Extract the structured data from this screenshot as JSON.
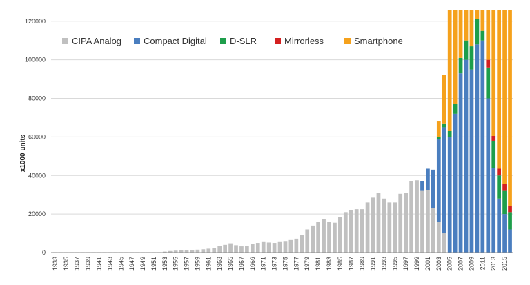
{
  "chart_data": {
    "type": "bar",
    "stacked": true,
    "title": "",
    "xlabel": "",
    "ylabel": "x1000 units",
    "ylim": [
      0,
      126000
    ],
    "yticks": [
      0,
      20000,
      40000,
      60000,
      80000,
      100000,
      120000
    ],
    "ytick_labels": [
      "0",
      "20000",
      "40000",
      "60000",
      "80000",
      "100000",
      "120000"
    ],
    "grid": "horizontal",
    "legend_position": "top-left",
    "categories": [
      "1933",
      "1934",
      "1935",
      "1936",
      "1937",
      "1938",
      "1939",
      "1940",
      "1941",
      "1942",
      "1943",
      "1944",
      "1945",
      "1946",
      "1947",
      "1948",
      "1949",
      "1950",
      "1951",
      "1952",
      "1953",
      "1954",
      "1955",
      "1956",
      "1957",
      "1958",
      "1959",
      "1960",
      "1961",
      "1962",
      "1963",
      "1964",
      "1965",
      "1966",
      "1967",
      "1968",
      "1969",
      "1970",
      "1971",
      "1972",
      "1973",
      "1974",
      "1975",
      "1976",
      "1977",
      "1978",
      "1979",
      "1980",
      "1981",
      "1982",
      "1983",
      "1984",
      "1985",
      "1986",
      "1987",
      "1988",
      "1989",
      "1990",
      "1991",
      "1992",
      "1993",
      "1994",
      "1995",
      "1996",
      "1997",
      "1998",
      "1999",
      "2000",
      "2001",
      "2002",
      "2003",
      "2004",
      "2005",
      "2006",
      "2007",
      "2008",
      "2009",
      "2010",
      "2011",
      "2012",
      "2013",
      "2014",
      "2015",
      "2016"
    ],
    "x_tick_labels": [
      "1933",
      "1935",
      "1937",
      "1939",
      "1941",
      "1943",
      "1945",
      "1947",
      "1949",
      "1951",
      "1953",
      "1955",
      "1957",
      "1959",
      "1961",
      "1963",
      "1965",
      "1967",
      "1969",
      "1971",
      "1973",
      "1975",
      "1977",
      "1979",
      "1981",
      "1983",
      "1985",
      "1987",
      "1989",
      "1991",
      "1993",
      "1995",
      "1997",
      "1999",
      "2001",
      "2003",
      "2005",
      "2007",
      "2009",
      "2011",
      "2013",
      "2015"
    ],
    "series": [
      {
        "name": "CIPA Analog",
        "color": "#c0c0c0",
        "values": [
          200,
          200,
          200,
          200,
          200,
          200,
          200,
          200,
          200,
          200,
          200,
          200,
          200,
          200,
          200,
          200,
          200,
          200,
          200,
          200,
          500,
          800,
          1000,
          1200,
          1200,
          1300,
          1500,
          1700,
          2000,
          2500,
          3300,
          4000,
          4800,
          3800,
          3200,
          3500,
          4500,
          5000,
          5800,
          5200,
          5000,
          5800,
          6000,
          6500,
          7200,
          9000,
          12000,
          14000,
          16000,
          17500,
          16000,
          15500,
          18500,
          21000,
          22000,
          22500,
          22500,
          26000,
          28500,
          31000,
          28000,
          26000,
          26000,
          30500,
          31000,
          37000,
          37500,
          32000,
          32500,
          23000,
          16000,
          10000,
          0,
          0,
          0,
          0,
          0,
          0,
          0,
          0,
          0,
          0,
          0,
          0
        ]
      },
      {
        "name": "Compact Digital",
        "color": "#4a7ebf",
        "values": [
          0,
          0,
          0,
          0,
          0,
          0,
          0,
          0,
          0,
          0,
          0,
          0,
          0,
          0,
          0,
          0,
          0,
          0,
          0,
          0,
          0,
          0,
          0,
          0,
          0,
          0,
          0,
          0,
          0,
          0,
          0,
          0,
          0,
          0,
          0,
          0,
          0,
          0,
          0,
          0,
          0,
          0,
          0,
          0,
          0,
          0,
          0,
          0,
          0,
          0,
          0,
          0,
          0,
          0,
          0,
          0,
          0,
          0,
          0,
          0,
          0,
          0,
          0,
          0,
          0,
          0,
          0,
          5000,
          11000,
          20000,
          43000,
          55000,
          60000,
          72000,
          93000,
          100000,
          95000,
          108000,
          110000,
          80000,
          44000,
          28000,
          20000,
          12000
        ]
      },
      {
        "name": "D-SLR",
        "color": "#1e9e4b",
        "values": [
          0,
          0,
          0,
          0,
          0,
          0,
          0,
          0,
          0,
          0,
          0,
          0,
          0,
          0,
          0,
          0,
          0,
          0,
          0,
          0,
          0,
          0,
          0,
          0,
          0,
          0,
          0,
          0,
          0,
          0,
          0,
          0,
          0,
          0,
          0,
          0,
          0,
          0,
          0,
          0,
          0,
          0,
          0,
          0,
          0,
          0,
          0,
          0,
          0,
          0,
          0,
          0,
          0,
          0,
          0,
          0,
          0,
          0,
          0,
          0,
          0,
          0,
          0,
          0,
          0,
          0,
          0,
          0,
          0,
          0,
          1000,
          2000,
          3000,
          5000,
          8000,
          10000,
          12000,
          13000,
          5000,
          16000,
          14000,
          12000,
          12000,
          9000
        ]
      },
      {
        "name": "Mirrorless",
        "color": "#d42020",
        "values": [
          0,
          0,
          0,
          0,
          0,
          0,
          0,
          0,
          0,
          0,
          0,
          0,
          0,
          0,
          0,
          0,
          0,
          0,
          0,
          0,
          0,
          0,
          0,
          0,
          0,
          0,
          0,
          0,
          0,
          0,
          0,
          0,
          0,
          0,
          0,
          0,
          0,
          0,
          0,
          0,
          0,
          0,
          0,
          0,
          0,
          0,
          0,
          0,
          0,
          0,
          0,
          0,
          0,
          0,
          0,
          0,
          0,
          0,
          0,
          0,
          0,
          0,
          0,
          0,
          0,
          0,
          0,
          0,
          0,
          0,
          0,
          0,
          0,
          0,
          0,
          0,
          0,
          0,
          0,
          4000,
          2500,
          3500,
          3500,
          3000
        ]
      },
      {
        "name": "Smartphone",
        "color": "#f5a11c",
        "values": [
          0,
          0,
          0,
          0,
          0,
          0,
          0,
          0,
          0,
          0,
          0,
          0,
          0,
          0,
          0,
          0,
          0,
          0,
          0,
          0,
          0,
          0,
          0,
          0,
          0,
          0,
          0,
          0,
          0,
          0,
          0,
          0,
          0,
          0,
          0,
          0,
          0,
          0,
          0,
          0,
          0,
          0,
          0,
          0,
          0,
          0,
          0,
          0,
          0,
          0,
          0,
          0,
          0,
          0,
          0,
          0,
          0,
          0,
          0,
          0,
          0,
          0,
          0,
          0,
          0,
          0,
          0,
          0,
          0,
          0,
          8000,
          25000,
          63000,
          49000,
          25000,
          16000,
          19000,
          5000,
          11000,
          26000,
          65500,
          82500,
          90500,
          102000
        ]
      }
    ]
  }
}
